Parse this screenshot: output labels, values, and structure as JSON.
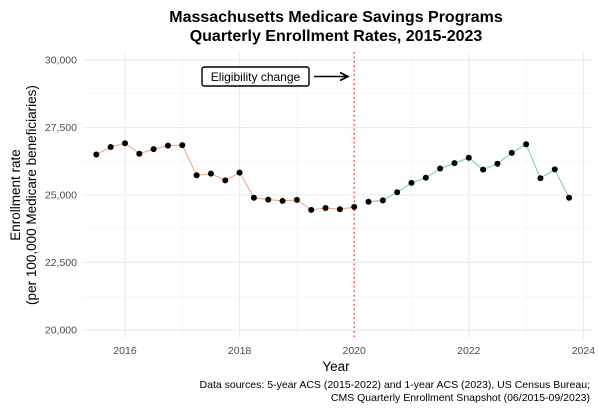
{
  "chart_data": {
    "type": "line",
    "title": [
      "Massachusetts Medicare Savings Programs",
      "Quarterly Enrollment Rates, 2015-2023"
    ],
    "xlabel": "Year",
    "ylabel": [
      "Enrollment rate",
      "(per 100,000 Medicare beneficiaries)"
    ],
    "xlim": [
      2015.25,
      2024.15
    ],
    "ylim": [
      19700,
      30300
    ],
    "x_ticks": [
      2016,
      2018,
      2020,
      2022,
      2024
    ],
    "x_tick_labels": [
      "2016",
      "2018",
      "2020",
      "2022",
      "2024"
    ],
    "y_ticks": [
      20000,
      22500,
      25000,
      27500,
      30000
    ],
    "y_tick_labels": [
      "20,000",
      "22,500",
      "25,000",
      "27,500",
      "30,000"
    ],
    "grid": true,
    "vline": {
      "x": 2020.0,
      "color": "#ff3333",
      "style": "dotted"
    },
    "annotation": {
      "text": "Eligibility change",
      "x": 2018.0,
      "y": 29450
    },
    "series": [
      {
        "color": "#f4a582",
        "x": [
          2015.5,
          2015.75,
          2016.0,
          2016.25,
          2016.5,
          2016.75,
          2017.0,
          2017.25,
          2017.5,
          2017.75,
          2018.0,
          2018.25,
          2018.5,
          2018.75,
          2019.0,
          2019.25,
          2019.5,
          2019.75,
          2020.0
        ],
        "y": [
          26500,
          26780,
          26920,
          26530,
          26700,
          26830,
          26850,
          25730,
          25790,
          25540,
          25830,
          24900,
          24830,
          24780,
          24820,
          24450,
          24520,
          24470,
          24560
        ]
      },
      {
        "color": "#7fcdbb",
        "x": [
          2020.25,
          2020.5,
          2020.75,
          2021.0,
          2021.25,
          2021.5,
          2021.75,
          2022.0,
          2022.25,
          2022.5,
          2022.75,
          2023.0,
          2023.25,
          2023.5,
          2023.75
        ],
        "y": [
          24750,
          24800,
          25100,
          25450,
          25640,
          25980,
          26180,
          26380,
          25940,
          26160,
          26560,
          26880,
          25620,
          25950,
          24900
        ]
      }
    ],
    "caption": [
      "Data sources: 5-year ACS (2015-2022) and 1-year ACS (2023), US Census Bureau;",
      "CMS Quarterly Enrollment Snapshot (06/2015-09/2023)"
    ]
  }
}
